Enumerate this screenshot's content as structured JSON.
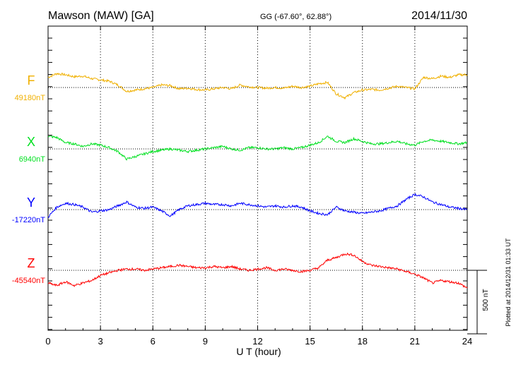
{
  "chart_data": {
    "type": "line",
    "title": "Mawson (MAW)  [GA]",
    "subtitle": "GG (-67.60°,  62.88°)",
    "date": "2014/11/30",
    "xlabel": "U T (hour)",
    "xlim": [
      0,
      24
    ],
    "xticks": [
      "0",
      "3",
      "6",
      "9",
      "12",
      "15",
      "18",
      "21",
      "24"
    ],
    "scale_bar_label": "500 nT",
    "footer_note": "Plotted at 2014/12/31 01:33 UT",
    "grid": "dotted vertical at 3-hour intervals; dotted baseline per series",
    "series": [
      {
        "name": "F",
        "baseline_label": "49180nT",
        "color": "#f0b000",
        "baseline_nT": 49180,
        "x": [
          0,
          0.5,
          1,
          1.5,
          2,
          2.5,
          3,
          3.5,
          4,
          4.5,
          5,
          5.5,
          6,
          6.5,
          7,
          7.5,
          8,
          8.5,
          9,
          9.5,
          10,
          10.5,
          11,
          11.5,
          12,
          12.5,
          13,
          13.5,
          14,
          14.5,
          15,
          15.5,
          16,
          16.5,
          17,
          17.5,
          18,
          18.5,
          19,
          19.5,
          20,
          20.5,
          21,
          21.5,
          22,
          22.5,
          23,
          23.5,
          24
        ],
        "values": [
          80,
          110,
          100,
          85,
          90,
          70,
          60,
          50,
          20,
          -30,
          -20,
          -10,
          0,
          20,
          15,
          -10,
          -5,
          -15,
          -20,
          -10,
          0,
          -10,
          20,
          5,
          0,
          -5,
          0,
          -5,
          10,
          0,
          10,
          30,
          40,
          -50,
          -80,
          -40,
          -20,
          -15,
          -20,
          -5,
          10,
          0,
          -10,
          80,
          70,
          90,
          80,
          100,
          100
        ]
      },
      {
        "name": "X",
        "baseline_label": "6940nT",
        "color": "#00e020",
        "baseline_nT": 6940,
        "x": [
          0,
          0.5,
          1,
          1.5,
          2,
          2.5,
          3,
          3.5,
          4,
          4.5,
          5,
          5.5,
          6,
          6.5,
          7,
          7.5,
          8,
          8.5,
          9,
          9.5,
          10,
          10.5,
          11,
          11.5,
          12,
          12.5,
          13,
          13.5,
          14,
          14.5,
          15,
          15.5,
          16,
          16.5,
          17,
          17.5,
          18,
          18.5,
          19,
          19.5,
          20,
          20.5,
          21,
          21.5,
          22,
          22.5,
          23,
          23.5,
          24
        ],
        "values": [
          100,
          90,
          50,
          40,
          20,
          40,
          30,
          10,
          -20,
          -80,
          -60,
          -40,
          -20,
          -10,
          0,
          -10,
          -20,
          -10,
          0,
          10,
          20,
          0,
          -10,
          10,
          10,
          0,
          0,
          10,
          0,
          10,
          30,
          50,
          100,
          60,
          50,
          80,
          60,
          40,
          40,
          50,
          60,
          40,
          30,
          60,
          70,
          60,
          50,
          40,
          50
        ]
      },
      {
        "name": "Y",
        "baseline_label": "-17220nT",
        "color": "#0000ff",
        "baseline_nT": -17220,
        "x": [
          0,
          0.5,
          1,
          1.5,
          2,
          2.5,
          3,
          3.5,
          4,
          4.5,
          5,
          5.5,
          6,
          6.5,
          7,
          7.5,
          8,
          8.5,
          9,
          9.5,
          10,
          10.5,
          11,
          11.5,
          12,
          12.5,
          13,
          13.5,
          14,
          14.5,
          15,
          15.5,
          16,
          16.5,
          17,
          17.5,
          18,
          18.5,
          19,
          19.5,
          20,
          20.5,
          21,
          21.5,
          22,
          22.5,
          23,
          23.5,
          24
        ],
        "values": [
          -60,
          20,
          50,
          40,
          20,
          -20,
          -10,
          0,
          30,
          60,
          20,
          10,
          20,
          -10,
          -50,
          0,
          30,
          40,
          50,
          40,
          40,
          30,
          50,
          40,
          30,
          20,
          30,
          20,
          30,
          20,
          -10,
          -30,
          -40,
          20,
          -10,
          -20,
          -30,
          -20,
          -10,
          10,
          30,
          80,
          120,
          100,
          60,
          40,
          20,
          10,
          0
        ]
      },
      {
        "name": "Z",
        "baseline_label": "-45540nT",
        "color": "#ff0000",
        "baseline_nT": -45540,
        "x": [
          0,
          0.5,
          1,
          1.5,
          2,
          2.5,
          3,
          3.5,
          4,
          4.5,
          5,
          5.5,
          6,
          6.5,
          7,
          7.5,
          8,
          8.5,
          9,
          9.5,
          10,
          10.5,
          11,
          11.5,
          12,
          12.5,
          13,
          13.5,
          14,
          14.5,
          15,
          15.5,
          16,
          16.5,
          17,
          17.5,
          18,
          18.5,
          19,
          19.5,
          20,
          20.5,
          21,
          21.5,
          22,
          22.5,
          23,
          23.5,
          24
        ],
        "values": [
          -100,
          -120,
          -90,
          -120,
          -100,
          -80,
          -40,
          -20,
          0,
          10,
          10,
          0,
          10,
          20,
          30,
          40,
          30,
          20,
          20,
          30,
          20,
          30,
          10,
          0,
          10,
          20,
          0,
          10,
          0,
          -10,
          0,
          20,
          80,
          100,
          130,
          120,
          70,
          40,
          30,
          20,
          10,
          -10,
          -30,
          -60,
          -100,
          -80,
          -90,
          -100,
          -140
        ]
      }
    ]
  }
}
